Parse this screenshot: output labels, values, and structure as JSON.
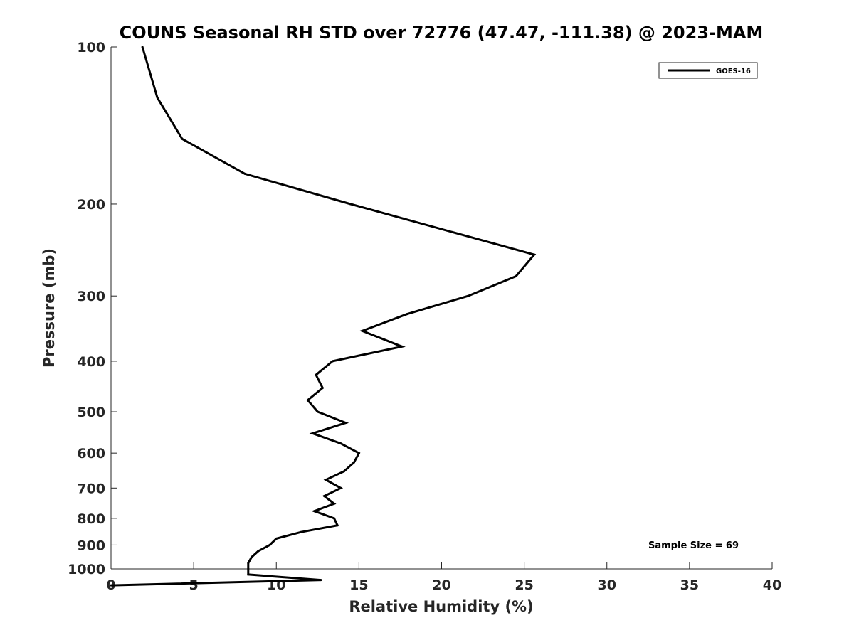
{
  "chart_data": {
    "type": "line",
    "title": "COUNS Seasonal RH STD over 72776 (47.47, -111.38) @ 2023-MAM",
    "xlabel": "Relative Humidity (%)",
    "ylabel": "Pressure (mb)",
    "xlim": [
      0,
      40
    ],
    "ylim": [
      100,
      1000
    ],
    "y_scale": "log",
    "y_reversed": true,
    "grid": false,
    "legend_position": "top-right",
    "x_ticks": [
      0,
      5,
      10,
      15,
      20,
      25,
      30,
      35,
      40
    ],
    "y_ticks": [
      100,
      200,
      300,
      400,
      500,
      600,
      700,
      800,
      900,
      1000
    ],
    "series": [
      {
        "name": "GOES-16",
        "color": "#000000",
        "points": [
          {
            "x": 1.9,
            "p": 100
          },
          {
            "x": 2.8,
            "p": 125
          },
          {
            "x": 4.3,
            "p": 150
          },
          {
            "x": 8.1,
            "p": 175
          },
          {
            "x": 14.5,
            "p": 200
          },
          {
            "x": 25.6,
            "p": 250
          },
          {
            "x": 24.5,
            "p": 275
          },
          {
            "x": 21.6,
            "p": 300
          },
          {
            "x": 17.9,
            "p": 325
          },
          {
            "x": 15.2,
            "p": 350
          },
          {
            "x": 17.6,
            "p": 375
          },
          {
            "x": 13.4,
            "p": 400
          },
          {
            "x": 12.4,
            "p": 425
          },
          {
            "x": 12.8,
            "p": 450
          },
          {
            "x": 11.9,
            "p": 475
          },
          {
            "x": 12.5,
            "p": 500
          },
          {
            "x": 14.2,
            "p": 525
          },
          {
            "x": 12.2,
            "p": 550
          },
          {
            "x": 13.9,
            "p": 575
          },
          {
            "x": 15.0,
            "p": 600
          },
          {
            "x": 14.7,
            "p": 625
          },
          {
            "x": 14.1,
            "p": 650
          },
          {
            "x": 13.0,
            "p": 675
          },
          {
            "x": 13.9,
            "p": 700
          },
          {
            "x": 12.9,
            "p": 725
          },
          {
            "x": 13.5,
            "p": 750
          },
          {
            "x": 12.3,
            "p": 775
          },
          {
            "x": 13.5,
            "p": 800
          },
          {
            "x": 13.7,
            "p": 825
          },
          {
            "x": 11.5,
            "p": 850
          },
          {
            "x": 10.0,
            "p": 875
          },
          {
            "x": 9.6,
            "p": 900
          },
          {
            "x": 8.9,
            "p": 925
          },
          {
            "x": 8.5,
            "p": 950
          },
          {
            "x": 8.3,
            "p": 975
          },
          {
            "x": 8.3,
            "p": 1000
          },
          {
            "x": 8.3,
            "p": 1025
          },
          {
            "x": 12.7,
            "p": 1050
          },
          {
            "x": 0.0,
            "p": 1075
          }
        ]
      }
    ],
    "annotation": "Sample Size = 69"
  }
}
